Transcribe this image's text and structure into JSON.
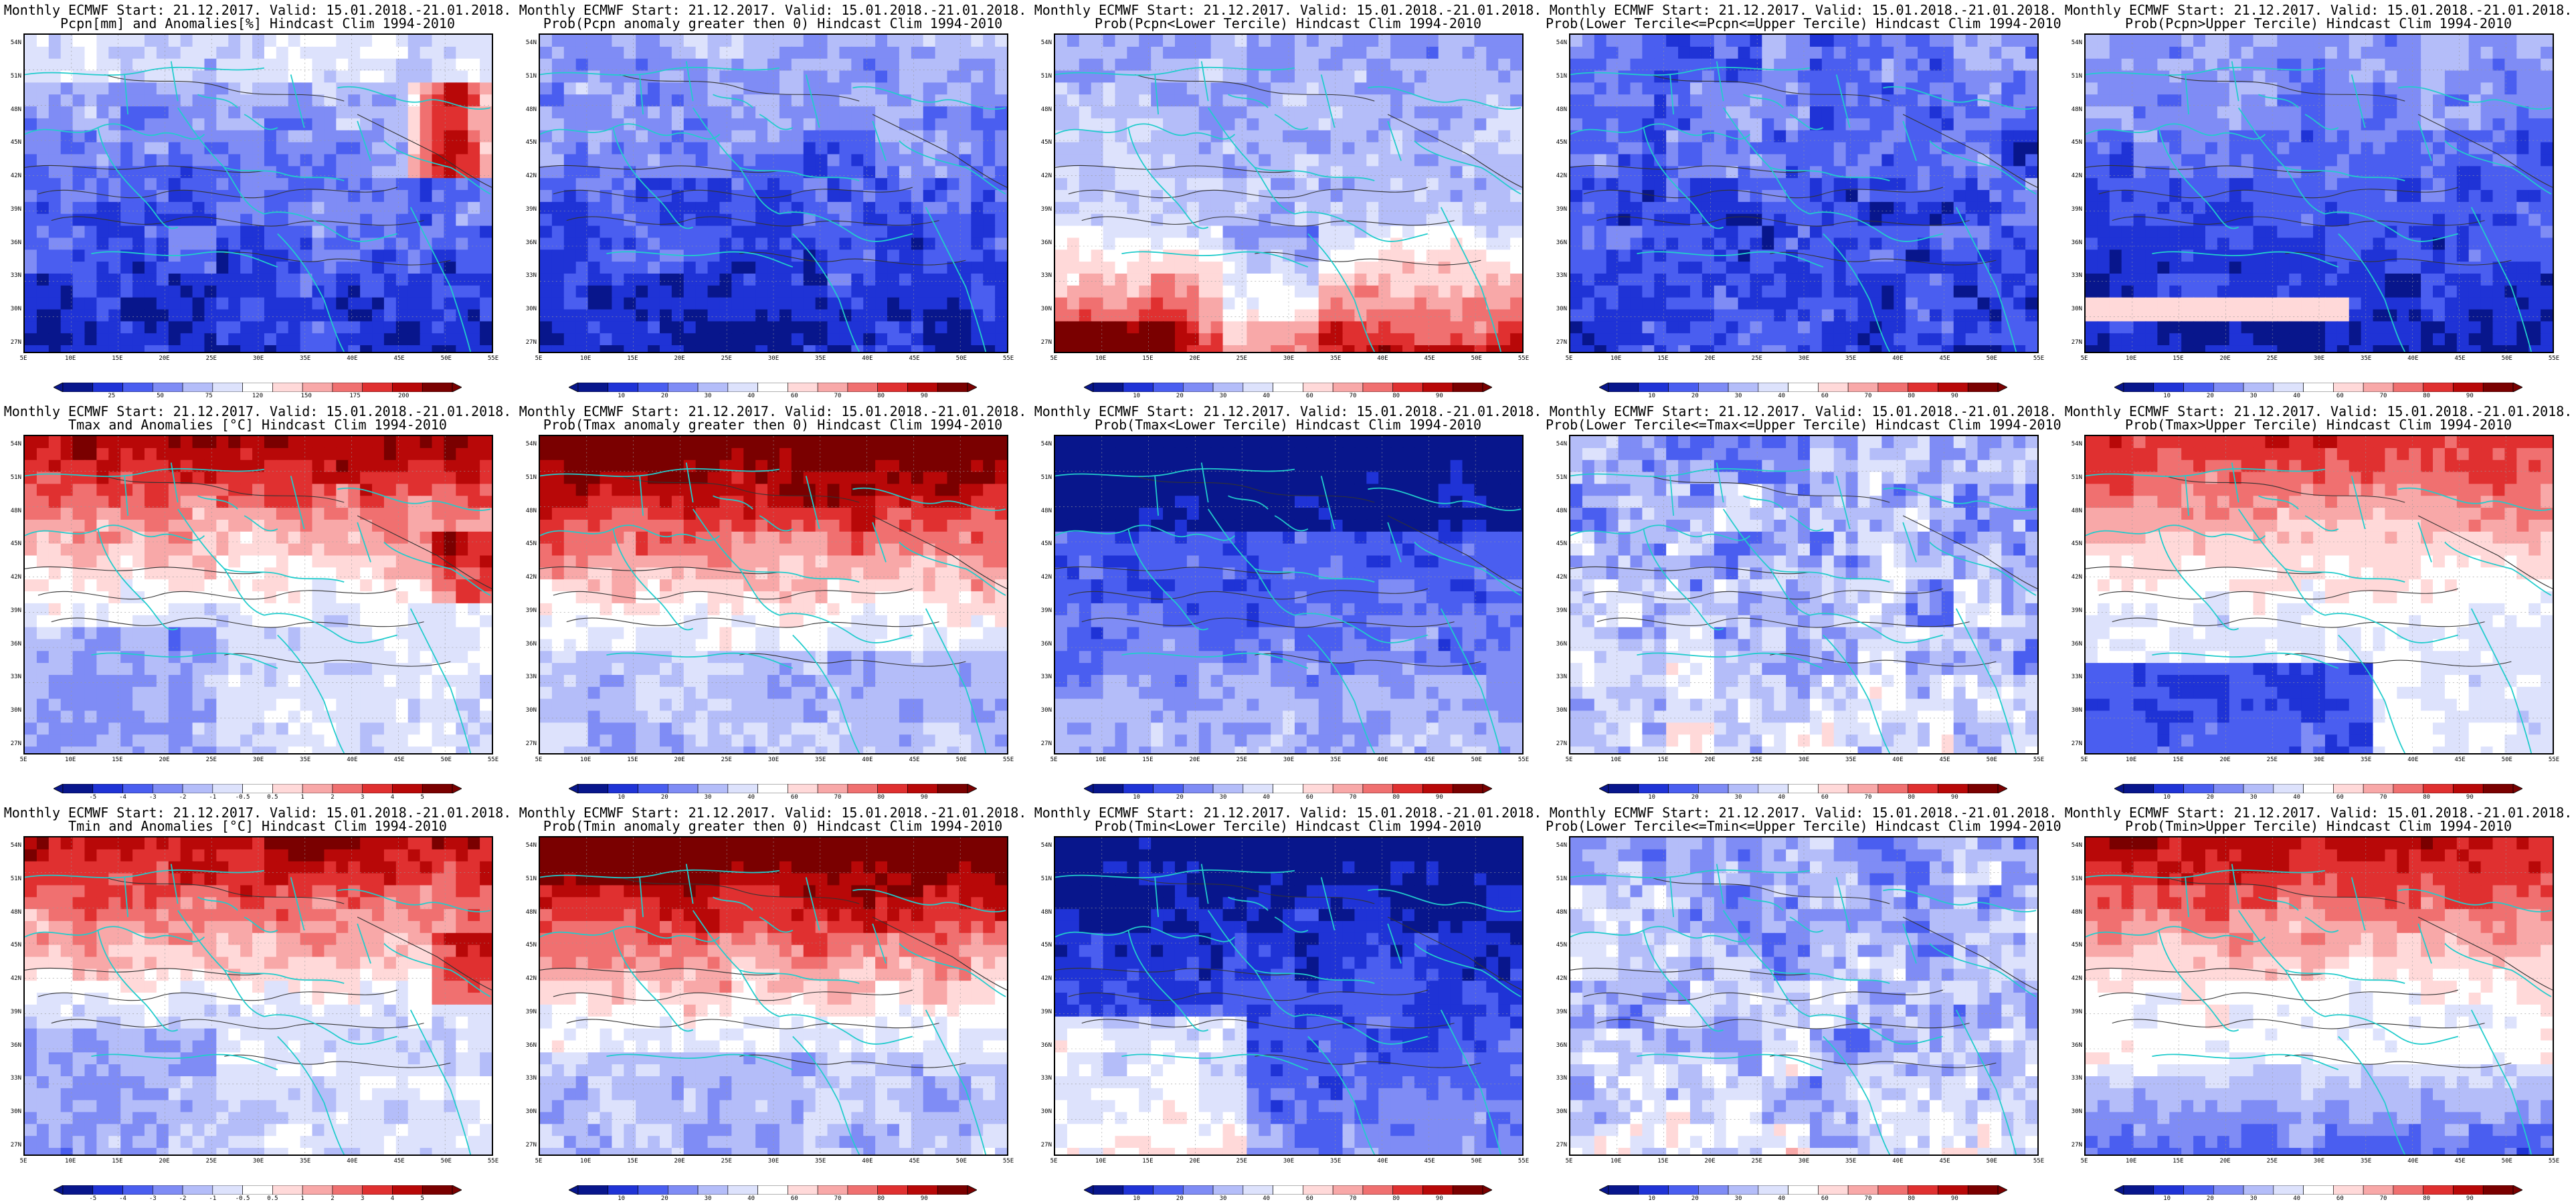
{
  "grid": {
    "rows": [
      {
        "panels": [
          {
            "title1": "Monthly ECMWF Start: 21.12.2017. Valid: 15.01.2018.-21.01.2018.",
            "title2": "Pcpn[mm] and Anomalies[%] Hindcast Clim 1994-2010",
            "field": "pcp_anom",
            "colorbar": [
              "25",
              "50",
              "75",
              "120",
              "150",
              "175",
              "200"
            ]
          },
          {
            "title1": "Monthly ECMWF Start: 21.12.2017. Valid: 15.01.2018.-21.01.2018.",
            "title2": "Prob(Pcpn anomaly greater then 0) Hindcast Clim 1994-2010",
            "field": "pcp_pos",
            "colorbar": [
              "10",
              "20",
              "30",
              "40",
              "60",
              "70",
              "80",
              "90"
            ]
          },
          {
            "title1": "Monthly ECMWF Start: 21.12.2017. Valid: 15.01.2018.-21.01.2018.",
            "title2": "Prob(Pcpn<Lower Tercile) Hindcast Clim 1994-2010",
            "field": "pcp_low",
            "colorbar": [
              "10",
              "20",
              "30",
              "40",
              "60",
              "70",
              "80",
              "90"
            ]
          },
          {
            "title1": "Monthly ECMWF Start: 21.12.2017. Valid: 15.01.2018.-21.01.2018.",
            "title2": "Prob(Lower Tercile<=Pcpn<=Upper Tercile) Hindcast Clim 1994-2010",
            "field": "pcp_mid",
            "colorbar": [
              "10",
              "20",
              "30",
              "40",
              "60",
              "70",
              "80",
              "90"
            ]
          },
          {
            "title1": "Monthly ECMWF Start: 21.12.2017. Valid: 15.01.2018.-21.01.2018.",
            "title2": "Prob(Pcpn>Upper Tercile) Hindcast Clim 1994-2010",
            "field": "pcp_up",
            "colorbar": [
              "10",
              "20",
              "30",
              "40",
              "60",
              "70",
              "80",
              "90"
            ]
          }
        ]
      },
      {
        "panels": [
          {
            "title1": "Monthly ECMWF Start: 21.12.2017. Valid: 15.01.2018.-21.01.2018.",
            "title2": "Tmax and Anomalies [°C] Hindcast Clim 1994-2010",
            "field": "t_anom",
            "colorbar": [
              "-5",
              "-4",
              "-3",
              "-2",
              "-1",
              "-0.5",
              "0.5",
              "1",
              "2",
              "3",
              "4",
              "5"
            ]
          },
          {
            "title1": "Monthly ECMWF Start: 21.12.2017. Valid: 15.01.2018.-21.01.2018.",
            "title2": "Prob(Tmax anomaly greater then 0) Hindcast Clim 1994-2010",
            "field": "t_pos",
            "colorbar": [
              "10",
              "20",
              "30",
              "40",
              "60",
              "70",
              "80",
              "90"
            ]
          },
          {
            "title1": "Monthly ECMWF Start: 21.12.2017. Valid: 15.01.2018.-21.01.2018.",
            "title2": "Prob(Tmax<Lower Tercile) Hindcast Clim 1994-2010",
            "field": "t_low",
            "colorbar": [
              "10",
              "20",
              "30",
              "40",
              "60",
              "70",
              "80",
              "90"
            ]
          },
          {
            "title1": "Monthly ECMWF Start: 21.12.2017. Valid: 15.01.2018.-21.01.2018.",
            "title2": "Prob(Lower Tercile<=Tmax<=Upper Tercile) Hindcast Clim 1994-2010",
            "field": "t_mid",
            "colorbar": [
              "10",
              "20",
              "30",
              "40",
              "60",
              "70",
              "80",
              "90"
            ]
          },
          {
            "title1": "Monthly ECMWF Start: 21.12.2017. Valid: 15.01.2018.-21.01.2018.",
            "title2": "Prob(Tmax>Upper Tercile) Hindcast Clim 1994-2010",
            "field": "t_up",
            "colorbar": [
              "10",
              "20",
              "30",
              "40",
              "60",
              "70",
              "80",
              "90"
            ]
          }
        ]
      },
      {
        "panels": [
          {
            "title1": "Monthly ECMWF Start: 21.12.2017. Valid: 15.01.2018.-21.01.2018.",
            "title2": "Tmin and Anomalies [°C] Hindcast Clim 1994-2010",
            "field": "t_anom",
            "colorbar": [
              "-5",
              "-4",
              "-3",
              "-2",
              "-1",
              "-0.5",
              "0.5",
              "1",
              "2",
              "3",
              "4",
              "5"
            ]
          },
          {
            "title1": "Monthly ECMWF Start: 21.12.2017. Valid: 15.01.2018.-21.01.2018.",
            "title2": "Prob(Tmin anomaly greater then 0) Hindcast Clim 1994-2010",
            "field": "t_pos",
            "colorbar": [
              "10",
              "20",
              "30",
              "40",
              "60",
              "70",
              "80",
              "90"
            ]
          },
          {
            "title1": "Monthly ECMWF Start: 21.12.2017. Valid: 15.01.2018.-21.01.2018.",
            "title2": "Prob(Tmin<Lower Tercile) Hindcast Clim 1994-2010",
            "field": "tn_low",
            "colorbar": [
              "10",
              "20",
              "30",
              "40",
              "60",
              "70",
              "80",
              "90"
            ]
          },
          {
            "title1": "Monthly ECMWF Start: 21.12.2017. Valid: 15.01.2018.-21.01.2018.",
            "title2": "Prob(Lower Tercile<=Tmin<=Upper Tercile) Hindcast Clim 1994-2010",
            "field": "t_mid",
            "colorbar": [
              "10",
              "20",
              "30",
              "40",
              "60",
              "70",
              "80",
              "90"
            ]
          },
          {
            "title1": "Monthly ECMWF Start: 21.12.2017. Valid: 15.01.2018.-21.01.2018.",
            "title2": "Prob(Tmin>Upper Tercile) Hindcast Clim 1994-2010",
            "field": "tn_up",
            "colorbar": [
              "10",
              "20",
              "30",
              "40",
              "60",
              "70",
              "80",
              "90"
            ]
          }
        ]
      }
    ]
  },
  "lat_labels": [
    "54N",
    "51N",
    "48N",
    "45N",
    "42N",
    "39N",
    "36N",
    "33N",
    "30N",
    "27N"
  ],
  "lon_labels": [
    "5E",
    "10E",
    "15E",
    "20E",
    "25E",
    "30E",
    "35E",
    "40E",
    "45E",
    "50E",
    "55E"
  ],
  "colors": {
    "blues": [
      "#08168c",
      "#1f33d6",
      "#4a5ef0",
      "#7f8cf5",
      "#b4bdf9",
      "#dde2fc"
    ],
    "reds": [
      "#ffd9d9",
      "#f8a8a8",
      "#f07070",
      "#e03030",
      "#b80808",
      "#7a0000"
    ],
    "coast": "#22cccc",
    "contour": "#333333"
  }
}
